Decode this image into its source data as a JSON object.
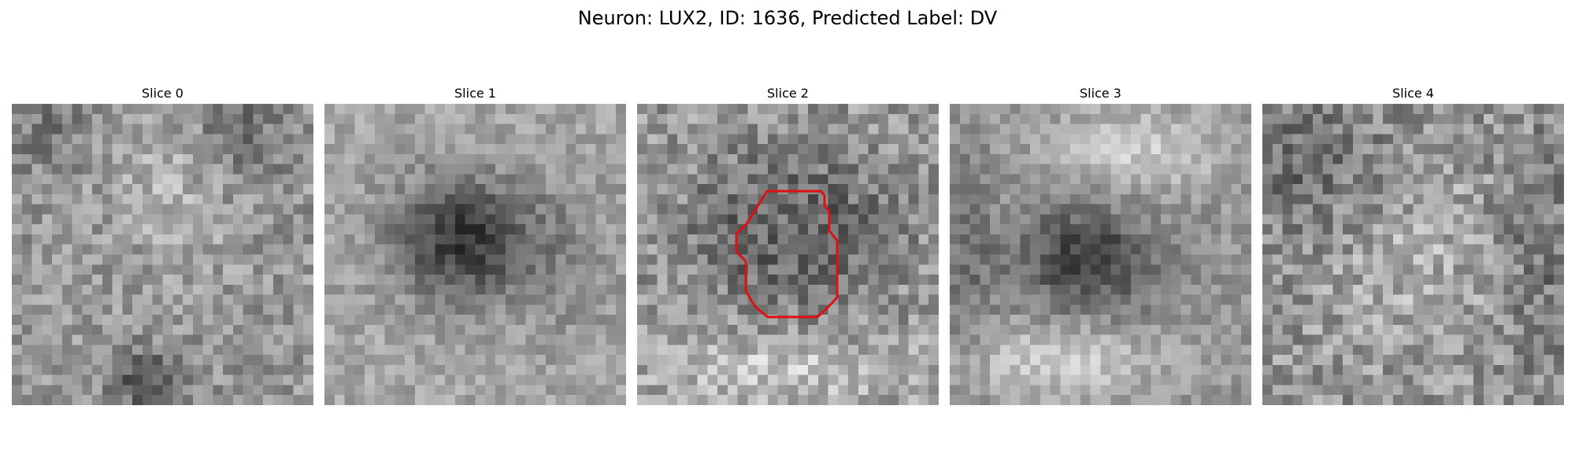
{
  "figure": {
    "suptitle": "Neuron: LUX2, ID: 1636, Predicted Label: DV",
    "colormap": "grayscale",
    "contour_color": "#e01010"
  },
  "panels": [
    {
      "title": "Slice 0",
      "pattern": "noisy texture, dark patch bottom",
      "has_contour": false
    },
    {
      "title": "Slice 1",
      "pattern": "dark central blob",
      "has_contour": false
    },
    {
      "title": "Slice 2",
      "pattern": "dark ring with contour",
      "has_contour": true
    },
    {
      "title": "Slice 3",
      "pattern": "dark blob with bright surround",
      "has_contour": false
    },
    {
      "title": "Slice 4",
      "pattern": "noisy texture, darker edges",
      "has_contour": false
    }
  ]
}
